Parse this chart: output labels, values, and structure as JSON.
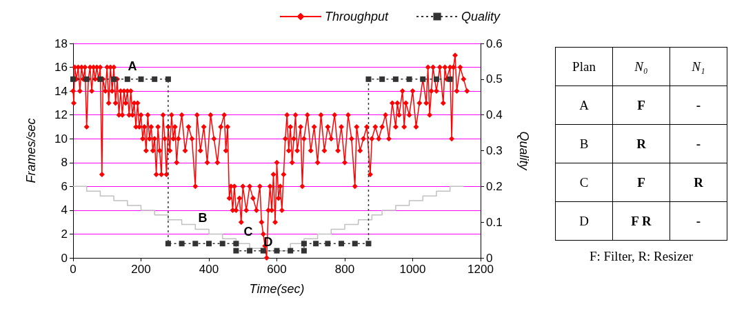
{
  "chart_data": [
    {
      "type": "line",
      "xlabel": "Time(sec)",
      "ylabel": "Frames/sec",
      "y2label": "Quality",
      "xlim": [
        0,
        1200
      ],
      "xticks": [
        0,
        200,
        400,
        600,
        800,
        1000,
        1200
      ],
      "ylim": [
        0,
        18
      ],
      "yticks": [
        0,
        2,
        4,
        6,
        8,
        10,
        12,
        14,
        16,
        18
      ],
      "y2lim": [
        0,
        0.6
      ],
      "y2ticks": [
        0,
        0.1,
        0.2,
        0.3,
        0.4,
        0.5,
        0.6
      ],
      "grid": "y",
      "legend": "top",
      "annotations": [
        "A",
        "B",
        "C",
        "D"
      ],
      "series": [
        {
          "name": "Throughput",
          "type": "line",
          "color": "#ff0000",
          "marker": "diamond",
          "x": [
            0,
            2,
            5,
            10,
            15,
            20,
            25,
            30,
            35,
            40,
            45,
            50,
            55,
            60,
            65,
            70,
            75,
            80,
            85,
            88,
            95,
            100,
            105,
            110,
            115,
            120,
            125,
            130,
            135,
            140,
            145,
            150,
            155,
            160,
            165,
            170,
            175,
            180,
            185,
            190,
            195,
            200,
            205,
            210,
            215,
            220,
            225,
            230,
            235,
            240,
            245,
            250,
            255,
            260,
            265,
            270,
            275,
            280,
            285,
            290,
            295,
            300,
            305,
            310,
            320,
            330,
            340,
            350,
            360,
            365,
            375,
            385,
            395,
            405,
            415,
            425,
            435,
            445,
            450,
            455,
            460,
            465,
            470,
            475,
            480,
            490,
            495,
            500,
            510,
            520,
            530,
            540,
            550,
            555,
            560,
            565,
            570,
            575,
            580,
            585,
            590,
            595,
            600,
            605,
            610,
            615,
            620,
            625,
            630,
            635,
            640,
            645,
            650,
            655,
            660,
            670,
            675,
            680,
            690,
            700,
            710,
            720,
            730,
            740,
            750,
            760,
            770,
            780,
            790,
            800,
            810,
            820,
            830,
            835,
            845,
            855,
            865,
            875,
            880,
            890,
            900,
            910,
            920,
            930,
            940,
            950,
            955,
            960,
            970,
            975,
            980,
            990,
            1000,
            1010,
            1020,
            1030,
            1040,
            1045,
            1050,
            1055,
            1060,
            1070,
            1080,
            1090,
            1095,
            1100,
            1110,
            1115,
            1120,
            1125,
            1130,
            1140,
            1150,
            1160
          ],
          "values": [
            14,
            13,
            16,
            15,
            16,
            14,
            16,
            15,
            16,
            11,
            15,
            16,
            14,
            16,
            15,
            16,
            15,
            16,
            7,
            15,
            14,
            16,
            13,
            16,
            14,
            16,
            13,
            15,
            12,
            14,
            12,
            14,
            13,
            14,
            12,
            14,
            12,
            13,
            11,
            13,
            11,
            12,
            10,
            11,
            9,
            12,
            10,
            11,
            9,
            10,
            7,
            11,
            9,
            7,
            12,
            10,
            7,
            11,
            9,
            12,
            10,
            11,
            8,
            10,
            12,
            9,
            11,
            10,
            6,
            12,
            9,
            11,
            8,
            12,
            10,
            8,
            11,
            12,
            9,
            11,
            5,
            6,
            4,
            6,
            4,
            5,
            3,
            6,
            4,
            6,
            5,
            4,
            6,
            3,
            2,
            1,
            0,
            4,
            6,
            4,
            7,
            3,
            8,
            5,
            6,
            4,
            7,
            10,
            12,
            9,
            11,
            8,
            10,
            12,
            9,
            11,
            6,
            10,
            12,
            9,
            11,
            8,
            12,
            9,
            11,
            10,
            12,
            9,
            11,
            8,
            12,
            10,
            6,
            11,
            9,
            10,
            11,
            7,
            10,
            11,
            10,
            11,
            12,
            10,
            13,
            11,
            13,
            12,
            14,
            11,
            13,
            12,
            14,
            11,
            13,
            15,
            13,
            16,
            12,
            14,
            16,
            14,
            16,
            13,
            16,
            15,
            16,
            10,
            16,
            17,
            14,
            16,
            15,
            14
          ]
        },
        {
          "name": "Quality",
          "type": "line",
          "axis": "y2",
          "color": "#333333",
          "marker": "square",
          "line_style": "dashed",
          "x": [
            0,
            40,
            80,
            120,
            160,
            200,
            240,
            280,
            280,
            320,
            360,
            400,
            440,
            480,
            480,
            520,
            560,
            600,
            640,
            680,
            680,
            715,
            750,
            790,
            830,
            870,
            870,
            910,
            950,
            990,
            1030,
            1070,
            1110
          ],
          "values": [
            0.5,
            0.5,
            0.5,
            0.5,
            0.5,
            0.5,
            0.5,
            0.5,
            0.04,
            0.04,
            0.04,
            0.04,
            0.04,
            0.04,
            0.02,
            0.02,
            0.02,
            0.02,
            0.02,
            0.02,
            0.04,
            0.04,
            0.04,
            0.04,
            0.04,
            0.04,
            0.5,
            0.5,
            0.5,
            0.5,
            0.5,
            0.5,
            0.5
          ]
        },
        {
          "type": "step",
          "color": "#c0c0c0",
          "marker": "none",
          "x": [
            0,
            40,
            80,
            120,
            160,
            200,
            240,
            280,
            320,
            360,
            400,
            440,
            480,
            520,
            560,
            640,
            680,
            720,
            760,
            800,
            840,
            880,
            910,
            950,
            990,
            1030,
            1070,
            1110,
            1150
          ],
          "values": [
            6,
            5.6,
            5.2,
            4.8,
            4.4,
            4,
            3.6,
            3.2,
            2.8,
            2.4,
            2,
            1.6,
            1.2,
            0.8,
            0.6,
            1.2,
            1.6,
            2,
            2.4,
            2.8,
            3.2,
            3.6,
            4,
            4.4,
            4.8,
            5.2,
            5.6,
            6,
            6
          ]
        }
      ]
    },
    {
      "type": "other",
      "categories": [
        "Plan",
        "N₀",
        "N₁"
      ],
      "cell_labels": [
        [
          "A",
          "F",
          "-"
        ],
        [
          "B",
          "R",
          "-"
        ],
        [
          "C",
          "F",
          "R"
        ],
        [
          "D",
          "F R",
          "-"
        ]
      ],
      "annotations": [
        "F: Filter, R: Resizer"
      ]
    }
  ]
}
